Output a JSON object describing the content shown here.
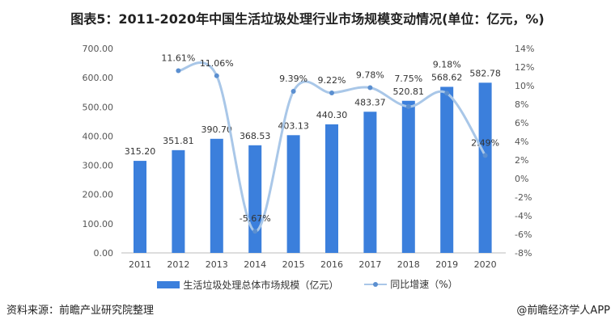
{
  "chart_data": {
    "type": "bar+line",
    "title": "图表5：2011-2020年中国生活垃圾处理行业市场规模变动情况(单位：亿元，%)",
    "categories": [
      "2011",
      "2012",
      "2013",
      "2014",
      "2015",
      "2016",
      "2017",
      "2018",
      "2019",
      "2020"
    ],
    "series": [
      {
        "name": "生活垃圾处理总体市场规模（亿元）",
        "type": "bar",
        "axis": "left",
        "color": "#3b7fdc",
        "values": [
          315.2,
          351.81,
          390.7,
          368.53,
          403.13,
          440.3,
          483.37,
          520.81,
          568.62,
          582.78
        ],
        "labels": [
          "315.20",
          "351.81",
          "390.70",
          "368.53",
          "403.13",
          "440.30",
          "483.37",
          "520.81",
          "568.62",
          "582.78"
        ]
      },
      {
        "name": "同比增速（%）",
        "type": "line",
        "axis": "right",
        "color": "#a9c7e8",
        "values": [
          null,
          11.61,
          11.06,
          -5.67,
          9.39,
          9.22,
          9.78,
          7.75,
          9.18,
          2.49
        ],
        "labels": [
          "",
          "11.61%",
          "11.06%",
          "-5.67%",
          "9.39%",
          "9.22%",
          "9.78%",
          "7.75%",
          "9.18%",
          "2.49%"
        ]
      }
    ],
    "ylim_left": [
      0,
      700
    ],
    "yticks_left": [
      "0.00",
      "100.00",
      "200.00",
      "300.00",
      "400.00",
      "500.00",
      "600.00",
      "700.00"
    ],
    "ylim_right": [
      -8,
      14
    ],
    "yticks_right": [
      "-8%",
      "-6%",
      "-4%",
      "-2%",
      "0%",
      "2%",
      "4%",
      "6%",
      "8%",
      "10%",
      "12%",
      "14%"
    ],
    "grid": false,
    "legend_placement": "bottom"
  },
  "legend": {
    "bar": "生活垃圾处理总体市场规模（亿元）",
    "line": "同比增速（%）"
  },
  "footer": {
    "source": "资料来源：前瞻产业研究院整理",
    "brand": "@前瞻经济学人APP"
  }
}
